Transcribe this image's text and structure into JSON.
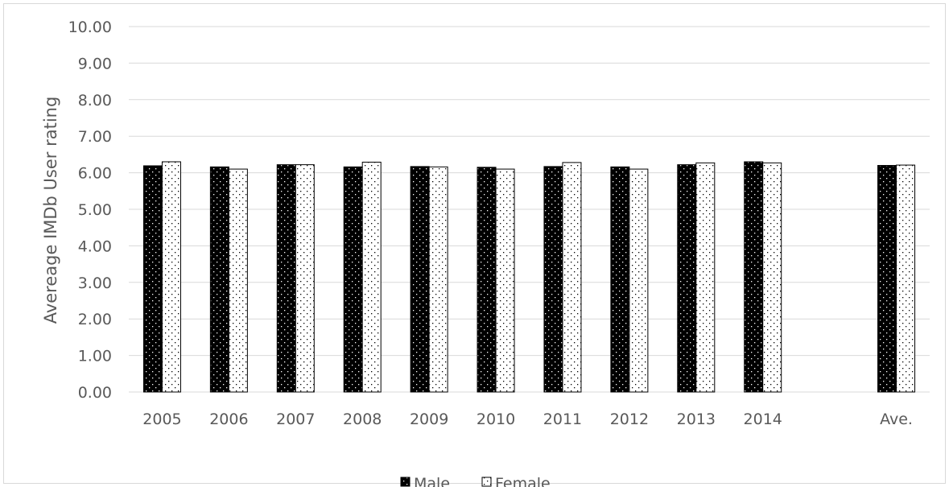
{
  "chart_data": {
    "type": "bar",
    "title": "",
    "xlabel": "",
    "ylabel": "Avereage IMDb User rating",
    "categories": [
      "2005",
      "2006",
      "2007",
      "2008",
      "2009",
      "2010",
      "2011",
      "2012",
      "2013",
      "2014",
      "",
      "Ave."
    ],
    "series": [
      {
        "name": "Male",
        "values": [
          6.19,
          6.16,
          6.22,
          6.16,
          6.17,
          6.15,
          6.17,
          6.16,
          6.22,
          6.3,
          null,
          6.2
        ]
      },
      {
        "name": "Female",
        "values": [
          6.3,
          6.1,
          6.22,
          6.29,
          6.16,
          6.1,
          6.28,
          6.1,
          6.27,
          6.27,
          null,
          6.21
        ]
      }
    ],
    "ylim": [
      0,
      10
    ],
    "yticks": [
      "0.00",
      "1.00",
      "2.00",
      "3.00",
      "4.00",
      "5.00",
      "6.00",
      "7.00",
      "8.00",
      "9.00",
      "10.00"
    ],
    "grid": true,
    "legend_position": "bottom",
    "colors": {
      "male_fill": "#000000",
      "male_dots": "#ffffff",
      "female_fill": "#ffffff",
      "female_dots": "#000000",
      "bar_border": "#000000",
      "gridline": "#d9d9d9",
      "axis_text": "#595959"
    }
  }
}
